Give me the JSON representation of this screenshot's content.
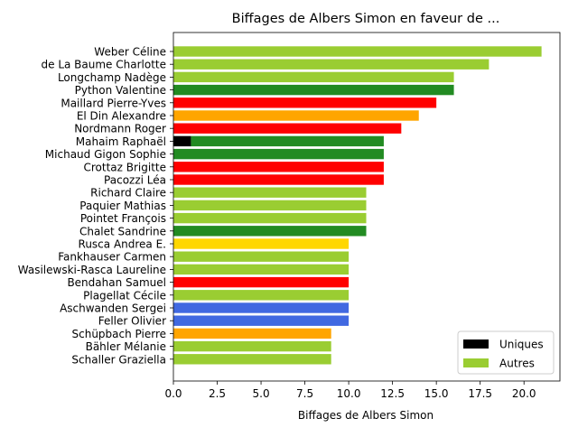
{
  "chart_data": {
    "type": "bar",
    "orientation": "horizontal",
    "stacked": true,
    "title": "Biffages de Albers Simon en faveur de ...",
    "xlabel": "Biffages de Albers Simon",
    "ylabel": "",
    "xlim": [
      0,
      22.05
    ],
    "xticks": [
      "0.0",
      "2.5",
      "5.0",
      "7.5",
      "10.0",
      "12.5",
      "15.0",
      "17.5",
      "20.0"
    ],
    "grid": false,
    "legend_position": "lower-right",
    "categories": [
      "Weber Céline",
      "de La Baume Charlotte",
      "Longchamp Nadège",
      "Python Valentine",
      "Maillard Pierre-Yves",
      "El Din Alexandre",
      "Nordmann Roger",
      "Mahaim Raphaël",
      "Michaud Gigon Sophie",
      "Crottaz Brigitte",
      "Pacozzi Léa",
      "Richard Claire",
      "Paquier Mathias",
      "Pointet François",
      "Chalet Sandrine",
      "Rusca Andrea E.",
      "Fankhauser Carmen",
      "Wasilewski-Rasca Laureline",
      "Bendahan Samuel",
      "Plagellat Cécile",
      "Aschwanden Sergei",
      "Feller Olivier",
      "Schüpbach Pierre",
      "Bähler Mélanie",
      "Schaller Graziella"
    ],
    "series": [
      {
        "name": "Uniques",
        "color": "#000000",
        "values": [
          0,
          0,
          0,
          0,
          0,
          0,
          0,
          1,
          0,
          0,
          0,
          0,
          0,
          0,
          0,
          0,
          0,
          0,
          0,
          0,
          0,
          0,
          0,
          0,
          0
        ]
      },
      {
        "name": "Autres",
        "color": "#9acd32",
        "values": [
          21,
          18,
          16,
          16,
          15,
          14,
          13,
          11,
          12,
          12,
          12,
          11,
          11,
          11,
          11,
          10,
          10,
          10,
          10,
          10,
          10,
          10,
          9,
          9,
          9
        ]
      }
    ],
    "bar_colors": [
      "#9acd32",
      "#9acd32",
      "#9acd32",
      "#228b22",
      "#ff0000",
      "#ffa500",
      "#ff0000",
      "#228b22",
      "#228b22",
      "#ff0000",
      "#ff0000",
      "#9acd32",
      "#9acd32",
      "#9acd32",
      "#228b22",
      "#ffd700",
      "#9acd32",
      "#9acd32",
      "#ff0000",
      "#9acd32",
      "#4169e1",
      "#4169e1",
      "#ffa500",
      "#9acd32",
      "#9acd32"
    ]
  }
}
